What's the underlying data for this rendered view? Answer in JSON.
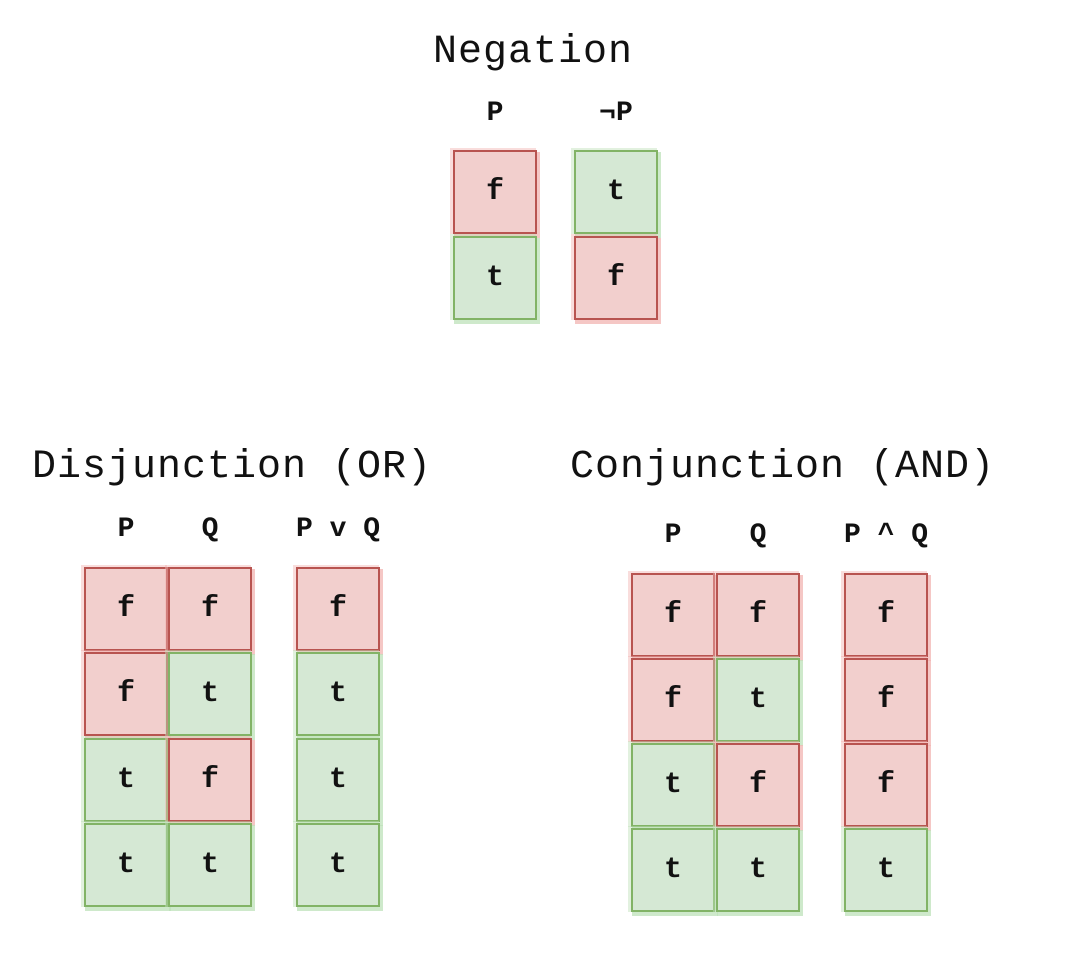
{
  "colors": {
    "false_fill": "#f2cfcd",
    "false_stroke": "#b85450",
    "true_fill": "#d5e8d4",
    "true_stroke": "#82b366"
  },
  "negation": {
    "title": "Negation",
    "headers": [
      "P",
      "¬P"
    ],
    "columns": [
      [
        "f",
        "t"
      ],
      [
        "t",
        "f"
      ]
    ]
  },
  "disjunction": {
    "title": "Disjunction (OR)",
    "headers": [
      "P",
      "Q",
      "P v Q"
    ],
    "columns": [
      [
        "f",
        "f",
        "t",
        "t"
      ],
      [
        "f",
        "t",
        "f",
        "t"
      ],
      [
        "f",
        "t",
        "t",
        "t"
      ]
    ]
  },
  "conjunction": {
    "title": "Conjunction (AND)",
    "headers": [
      "P",
      "Q",
      "P ^ Q"
    ],
    "columns": [
      [
        "f",
        "f",
        "t",
        "t"
      ],
      [
        "f",
        "t",
        "f",
        "t"
      ],
      [
        "f",
        "f",
        "f",
        "t"
      ]
    ]
  }
}
